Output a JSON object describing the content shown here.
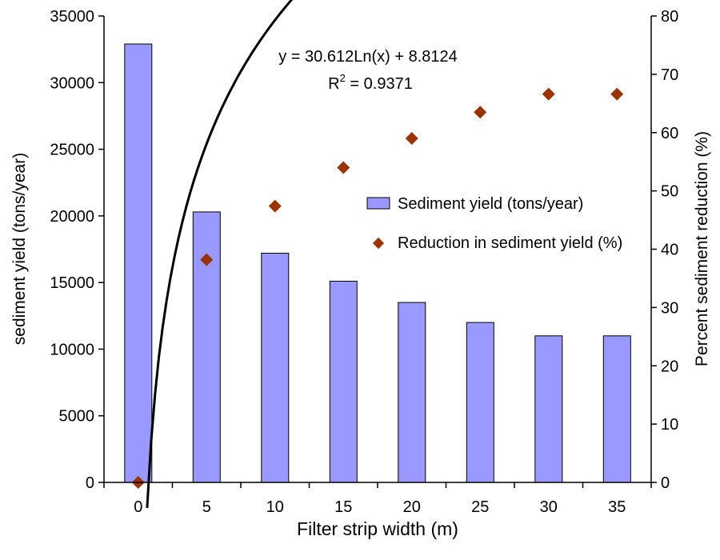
{
  "chart_data": {
    "type": "bar",
    "categories": [
      "0",
      "5",
      "10",
      "15",
      "20",
      "25",
      "30",
      "35"
    ],
    "x": [
      0,
      5,
      10,
      15,
      20,
      25,
      30,
      35
    ],
    "xlabel": "Filter strip width (m)",
    "ylabel": "sediment yield (tons/year)",
    "y2label": "Percent sediment reduction (%)",
    "ylim": [
      0,
      35000
    ],
    "y2lim": [
      0,
      80
    ],
    "yticks": [
      "0",
      "5000",
      "10000",
      "15000",
      "20000",
      "25000",
      "30000",
      "35000"
    ],
    "y2ticks": [
      "0",
      "10",
      "20",
      "30",
      "40",
      "50",
      "60",
      "70",
      "80"
    ],
    "series": [
      {
        "name": "Sediment yield (tons/year)",
        "type": "bar",
        "axis": "left",
        "values": [
          32900,
          20300,
          17200,
          15100,
          13500,
          12000,
          11000,
          11000
        ]
      },
      {
        "name": "Reduction in sediment yield (%)",
        "type": "scatter",
        "axis": "right",
        "values": [
          0,
          38.2,
          47.4,
          54.0,
          59.0,
          63.5,
          66.6,
          66.6
        ]
      }
    ],
    "trendline": {
      "equation": "y = 30.612Ln(x) + 8.8124",
      "r2_prefix": "R",
      "r2_sup": "2",
      "r2_value": " = 0.9371",
      "a": 30.612,
      "b": 8.8124,
      "x_from": 0.65,
      "x_to": 35
    },
    "legend": {
      "position": "right-middle",
      "items": [
        "Sediment yield (tons/year)",
        "Reduction in sediment yield (%)"
      ]
    },
    "grid": false,
    "colors": {
      "bar_fill": "#9999ff",
      "bar_stroke": "#000000",
      "marker_fill": "#993300",
      "trend_line": "#000000"
    }
  }
}
